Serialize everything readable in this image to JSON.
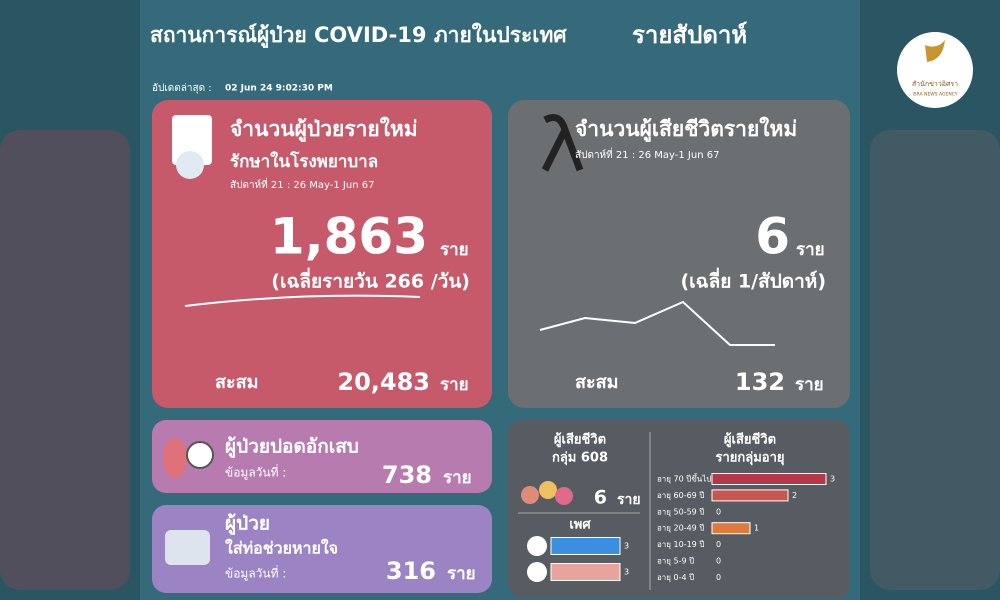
{
  "header": {
    "title": "สถานการณ์ผู้ป่วย COVID-19 ภายในประเทศ",
    "title_suffix": "รายสัปดาห์",
    "updated_label": "อัปเดตล่าสุด :",
    "updated_value": "02 Jun 24 9:02:30 PM",
    "logo_name": "สำนักข่าวอิศรา",
    "logo_sub": "ISRA NEWS AGENCY"
  },
  "new_cases": {
    "title": "จำนวนผู้ป่วยรายใหม่",
    "subtitle": "รักษาในโรงพยาบาล",
    "week": "สัปดาห์ที่ 21 : 26 May-1 Jun 67",
    "value": "1,863",
    "unit": "ราย",
    "average": "(เฉลี่ยรายวัน 266 /วัน)",
    "cumulative_label": "สะสม",
    "cumulative_value": "20,483",
    "cumulative_unit": "ราย"
  },
  "deaths": {
    "title": "จำนวนผู้เสียชีวิตรายใหม่",
    "week": "สัปดาห์ที่ 21 : 26 May-1 Jun 67",
    "value": "6",
    "unit": "ราย",
    "average": "(เฉลี่ย 1/สัปดาห์)",
    "cumulative_label": "สะสม",
    "cumulative_value": "132",
    "cumulative_unit": "ราย"
  },
  "pneumonia": {
    "title": "ผู้ป่วยปอดอักเสบ",
    "date_label": "ข้อมูลวันที่ :",
    "value": "738",
    "unit": "ราย"
  },
  "ventilator": {
    "title": "ผู้ป่วย",
    "subtitle": "ใส่ท่อช่วยหายใจ",
    "date_label": "ข้อมูลวันที่ :",
    "value": "316",
    "unit": "ราย"
  },
  "deaths_608": {
    "title": "ผู้เสียชีวิต",
    "subtitle": "กลุ่ม 608",
    "value": "6",
    "unit": "ราย",
    "gender_title": "เพศ"
  },
  "gender_chart": {
    "type": "bar",
    "categories": [
      null,
      null
    ],
    "values": [
      3,
      3
    ],
    "colors": [
      "#3b8fe0",
      "#e8a49c"
    ]
  },
  "age_chart": {
    "type": "bar",
    "title": "ผู้เสียชีวิต",
    "subtitle": "รายกลุ่มอายุ",
    "categories": [
      "อายุ 70 ปีขึ้นไป",
      "อายุ 60-69 ปี",
      "อายุ 50-59 ปี",
      "อายุ 20-49 ปี",
      "อายุ 10-19 ปี",
      "อายุ 5-9 ปี",
      "อายุ 0-4 ปี"
    ],
    "values": [
      3,
      2,
      0,
      1,
      0,
      0,
      0
    ],
    "colors": [
      "#b5374a",
      "#c9564f",
      "#c9564f",
      "#e07a3c",
      "#e07a3c",
      "#e07a3c",
      "#e07a3c"
    ]
  }
}
